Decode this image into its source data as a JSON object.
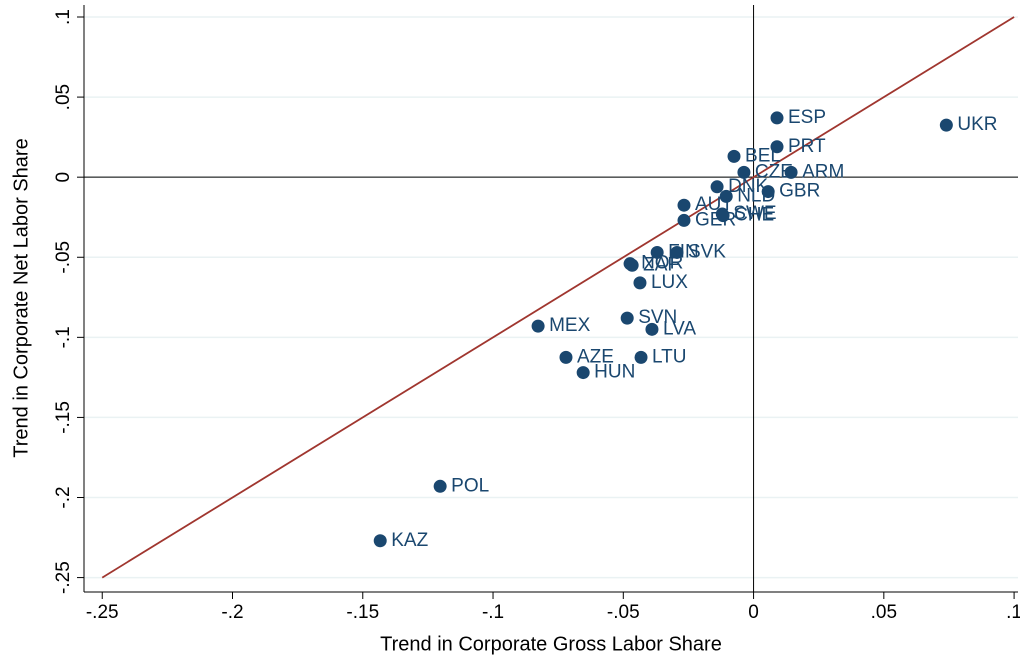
{
  "chart_data": {
    "type": "scatter",
    "x_label": "Trend in Corporate Gross Labor Share",
    "y_label": "Trend in Corporate Net Labor Share",
    "labels": [
      "ESP",
      "UKR",
      "PRT",
      "BEL",
      "CZE",
      "ARM",
      "DNK",
      "GBR",
      "NLD",
      "SWE",
      "AUT",
      "GER",
      "CHE",
      "FIN",
      "SVK",
      "NOR",
      "ZAF",
      "LUX",
      "SVN",
      "LVA",
      "MEX",
      "AZE",
      "LTU",
      "HUN",
      "POL",
      "KAZ"
    ],
    "x": [
      0.009,
      0.074,
      0.009,
      -0.0075,
      -0.0037,
      0.0144,
      -0.014,
      0.0056,
      -0.0105,
      -0.012,
      -0.0267,
      -0.0267,
      -0.0117,
      -0.037,
      -0.0294,
      -0.0474,
      -0.0466,
      -0.0436,
      -0.0485,
      -0.039,
      -0.0827,
      -0.072,
      -0.0432,
      -0.0654,
      -0.1203,
      -0.1433
    ],
    "values": [
      0.037,
      0.0325,
      0.019,
      0.013,
      0.003,
      0.003,
      -0.006,
      -0.009,
      -0.012,
      -0.023,
      -0.0175,
      -0.027,
      -0.024,
      -0.047,
      -0.047,
      -0.054,
      -0.055,
      -0.066,
      -0.088,
      -0.095,
      -0.093,
      -0.1125,
      -0.1125,
      -0.122,
      -0.193,
      -0.227
    ],
    "color": "#1a476f",
    "xlim": [
      -0.257,
      0.1015
    ],
    "ylim": [
      -0.259,
      0.1075
    ],
    "xticks": [
      {
        "value": -0.25,
        "label": "-.25"
      },
      {
        "value": -0.2,
        "label": "-.2"
      },
      {
        "value": -0.15,
        "label": "-.15"
      },
      {
        "value": -0.1,
        "label": "-.1"
      },
      {
        "value": -0.05,
        "label": "-.05"
      },
      0,
      {
        "value": 0.05,
        "label": ".05"
      },
      {
        "value": 0.1,
        "label": ".1"
      }
    ],
    "yticks": [
      {
        "value": -0.25,
        "label": "-.25"
      },
      {
        "value": -0.2,
        "label": "-.2"
      },
      {
        "value": -0.15,
        "label": "-.15"
      },
      {
        "value": -0.1,
        "label": "-.1"
      },
      {
        "value": -0.05,
        "label": "-.05"
      },
      0,
      {
        "value": 0.05,
        "label": ".05"
      },
      {
        "value": 0.1,
        "label": ".1"
      }
    ],
    "grid": true,
    "diagonal": {
      "x": [
        -0.25,
        0.1
      ],
      "y": [
        -0.25,
        0.1
      ],
      "color": "#a0362f"
    }
  }
}
